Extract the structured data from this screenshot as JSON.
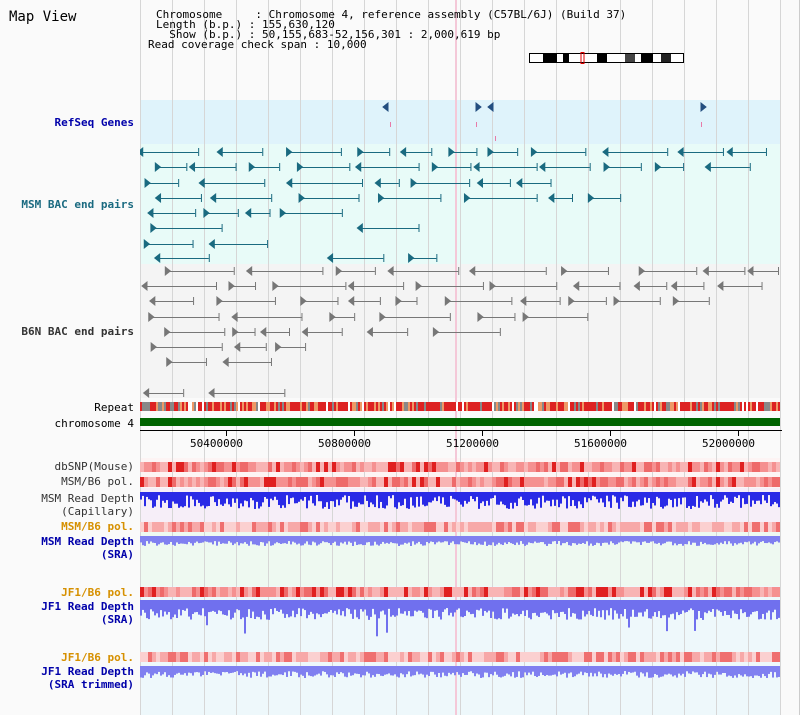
{
  "title": "Map View",
  "header": {
    "chromosome_label": "Chromosome     ",
    "chromosome_value": "Chromosome 4, reference assembly (C57BL/6J) (Build 37)",
    "length_label": "Length (b.p.)",
    "length_value": "155,630,120",
    "show_label": "  Show (b.p.)",
    "show_value": "50,155,683-52,156,301 : 2,000,619 bp",
    "coverage_label": "Read coverage check span",
    "coverage_value": "10,000"
  },
  "tracks": {
    "refseq": "RefSeq Genes",
    "msm_bac": "MSM BAC end pairs",
    "b6n_bac": "B6N BAC end pairs",
    "repeat": "Repeat",
    "chromosome": "chromosome 4",
    "dbsnp": "dbSNP(Mouse)",
    "msm_b6_pol_1": "MSM/B6 pol.",
    "msm_read_depth_cap_1": "MSM Read Depth",
    "msm_read_depth_cap_2": "(Capillary)",
    "msm_b6_pol_2": "MSM/B6 pol.",
    "msm_read_depth_sra_1": "MSM Read Depth",
    "msm_read_depth_sra_2": "(SRA)",
    "jf1_b6_pol_1": "JF1/B6 pol.",
    "jf1_read_depth_sra_1": "JF1 Read Depth",
    "jf1_read_depth_sra_2": "(SRA)",
    "jf1_b6_pol_2": "JF1/B6 pol.",
    "jf1_read_depth_trim_1": "JF1 Read Depth",
    "jf1_read_depth_trim_2": "(SRA trimmed)"
  },
  "axis": {
    "ticks": [
      "50400000",
      "50800000",
      "51200000",
      "51600000",
      "52000000"
    ]
  },
  "colors": {
    "refseq_bg": "#dff3fb",
    "msm_bac_bg": "#e8fbf8",
    "b6n_bac_bg": "#f4f4f4",
    "chromosome_bar": "#006400",
    "capillary_depth": "#2a2ae6",
    "sra_depth": "#8080f0",
    "polymorphism": "#e83030",
    "label_blue": "#0000aa",
    "label_orange": "#d69000"
  }
}
